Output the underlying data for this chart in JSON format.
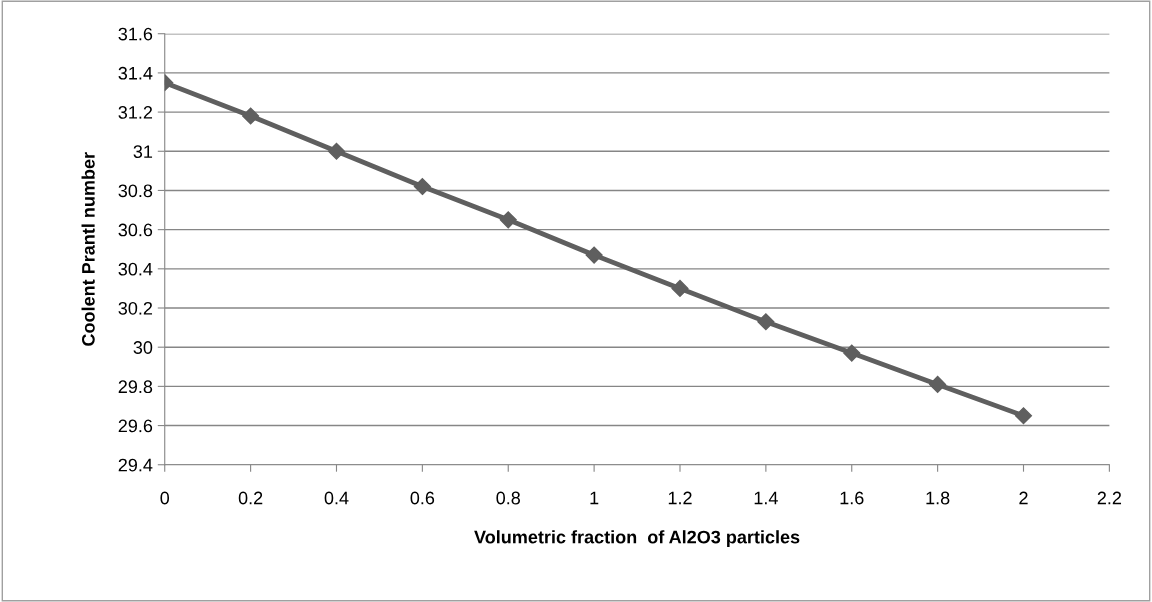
{
  "chart_data": {
    "type": "line",
    "xlabel": "Volumetric fraction  of Al2O3 particles",
    "ylabel": "Coolent Prantl number",
    "x": [
      0,
      0.2,
      0.4,
      0.6,
      0.8,
      1,
      1.2,
      1.4,
      1.6,
      1.8,
      2
    ],
    "series": [
      {
        "color": "#5f5f5f",
        "values": [
          31.35,
          31.18,
          31.0,
          30.82,
          30.65,
          30.47,
          30.3,
          30.13,
          29.97,
          29.81,
          29.65
        ]
      }
    ],
    "xlim": [
      0,
      2.2
    ],
    "xticks": [
      0,
      0.2,
      0.4,
      0.6,
      0.8,
      1,
      1.2,
      1.4,
      1.6,
      1.8,
      2,
      2.2
    ],
    "ylim": [
      29.4,
      31.6
    ],
    "yticks": [
      29.4,
      29.6,
      29.8,
      30,
      30.2,
      30.4,
      30.6,
      30.8,
      31,
      31.2,
      31.4,
      31.6
    ],
    "grid": "y",
    "marker": "diamond",
    "line_style": "solid",
    "legend": false
  }
}
